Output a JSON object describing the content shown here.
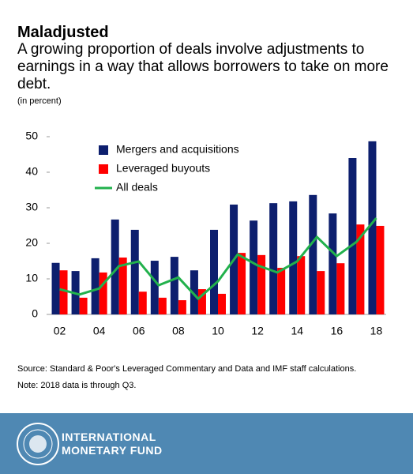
{
  "chart_data": {
    "type": "bar",
    "title": "Maladjusted",
    "subtitle": "A growing proportion of deals involve adjustments to earnings in a way that allows borrowers to take on more debt.",
    "y_label": "(in percent)",
    "categories": [
      "02",
      null,
      "04",
      null,
      "06",
      null,
      "08",
      null,
      "10",
      null,
      "12",
      null,
      "14",
      null,
      "16",
      null,
      "18"
    ],
    "series": [
      {
        "name": "Mergers and acquisitions",
        "type": "bar",
        "color": "#0d1f6e",
        "values": [
          14.5,
          12.2,
          15.8,
          26.7,
          23.8,
          15.1,
          16.2,
          12.4,
          23.8,
          30.9,
          26.4,
          31.3,
          31.8,
          33.6,
          28.4,
          44,
          48.7
        ]
      },
      {
        "name": "Leveraged buyouts",
        "type": "bar",
        "color": "#ff0000",
        "values": [
          12.4,
          4.7,
          11.8,
          16,
          6.4,
          4.7,
          4,
          7.1,
          5.8,
          17.3,
          16.7,
          13.1,
          16.4,
          12.2,
          14.4,
          25.3,
          24.9
        ]
      },
      {
        "name": "All deals",
        "type": "line",
        "color": "#22b14c",
        "values": [
          7.1,
          5.6,
          7.3,
          13.6,
          14.9,
          8.2,
          10.4,
          4.4,
          9.3,
          16.9,
          13.8,
          11.8,
          14.9,
          21.8,
          16.4,
          20.4,
          27.1
        ]
      }
    ],
    "ylim": [
      0,
      50
    ],
    "yticks": [
      0,
      10,
      20,
      30,
      40,
      50
    ],
    "grid": false,
    "legend": "upper left",
    "source": "Source: Standard & Poor's Leveraged Commentary and Data and IMF staff calculations.",
    "note": "Note: 2018 data is through Q3."
  },
  "footer": {
    "org": [
      "INTERNATIONAL",
      "MONETARY FUND"
    ]
  }
}
